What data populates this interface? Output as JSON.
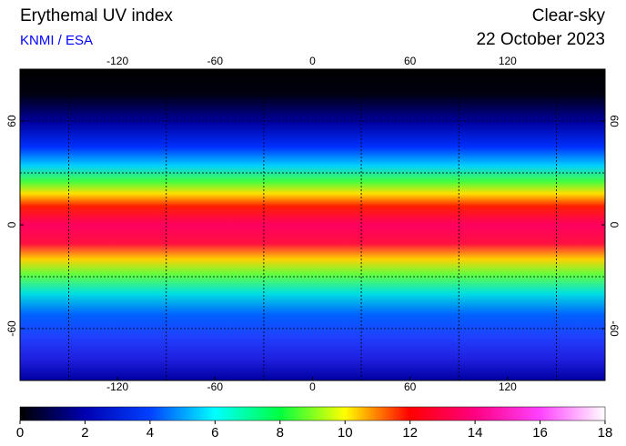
{
  "header": {
    "title": "Erythemal UV index",
    "source": "KNMI / ESA",
    "condition": "Clear-sky",
    "date": "22 October 2023"
  },
  "map": {
    "type": "map",
    "lon_range": [
      -180,
      180
    ],
    "lat_range": [
      -90,
      90
    ],
    "lon_ticks": [
      -120,
      -60,
      0,
      60,
      120
    ],
    "lat_ticks": [
      60,
      0,
      -60
    ],
    "grid_lons": [
      -150,
      -90,
      -30,
      30,
      90,
      150
    ],
    "grid_lats": [
      60,
      30,
      -30,
      -60
    ]
  },
  "colorbar": {
    "range": [
      0,
      18
    ],
    "ticks": [
      0,
      2,
      4,
      6,
      8,
      10,
      12,
      14,
      16,
      18
    ]
  }
}
